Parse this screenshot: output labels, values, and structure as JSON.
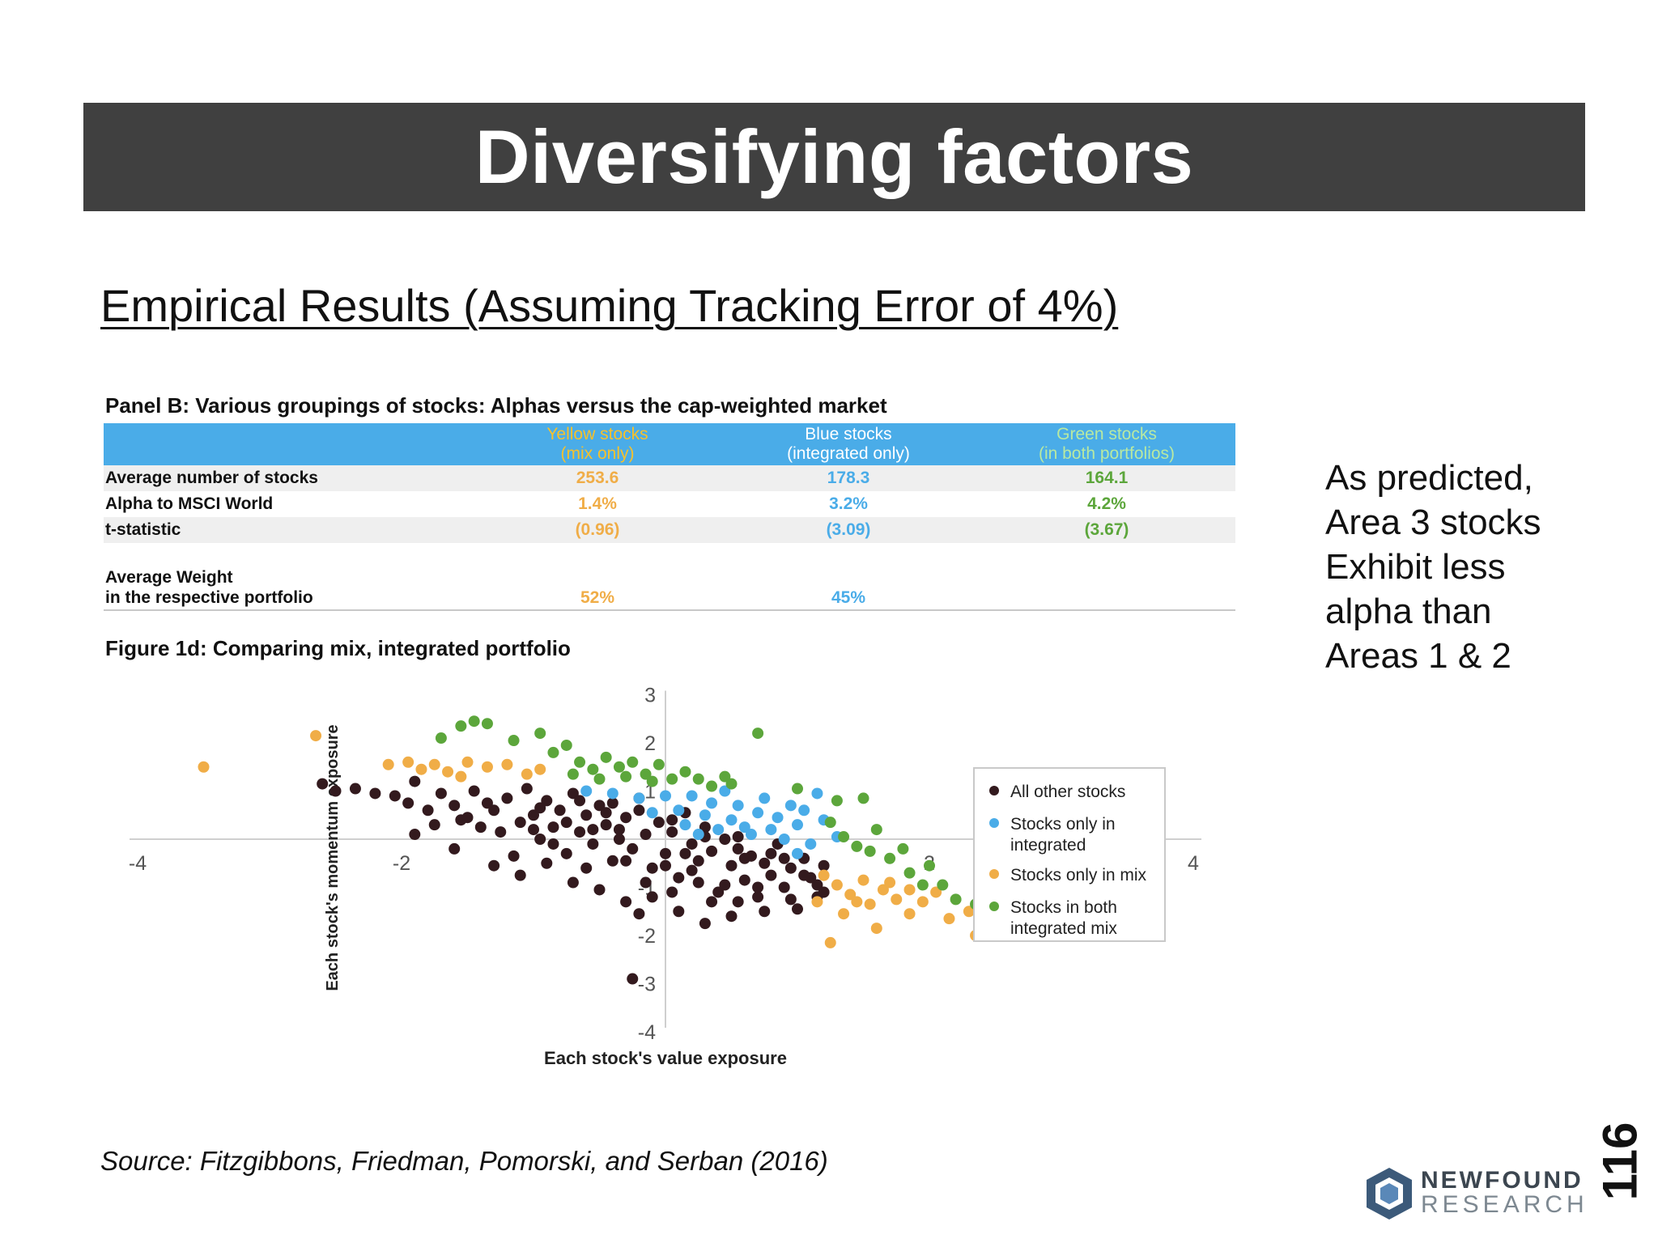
{
  "title": "Diversifying factors",
  "subtitle": "Empirical Results (Assuming Tracking Error of 4%)",
  "panel": {
    "title": "Panel B: Various groupings of stocks: Alphas versus the cap-weighted market",
    "columns": [
      {
        "line1": "Yellow stocks",
        "line2": "(mix only)"
      },
      {
        "line1": "Blue stocks",
        "line2": "(integrated only)"
      },
      {
        "line1": "Green stocks",
        "line2": "(in both portfolios)"
      }
    ],
    "rows": [
      {
        "label": "Average number of stocks",
        "values": [
          "253.6",
          "178.3",
          "164.1"
        ]
      },
      {
        "label": "Alpha to MSCI World",
        "values": [
          "1.4%",
          "3.2%",
          "4.2%"
        ]
      },
      {
        "label": "t-statistic",
        "values": [
          "(0.96)",
          "(3.09)",
          "(3.67)"
        ]
      }
    ],
    "weight_row": {
      "label_line1": "Average Weight",
      "label_line2": "in the respective portfolio",
      "values": [
        "52%",
        "45%",
        ""
      ]
    }
  },
  "figure": {
    "title": "Figure 1d: Comparing mix, integrated portfolio"
  },
  "chart_data": {
    "type": "scatter",
    "title": "",
    "xlabel": "Each stock's value exposure",
    "ylabel": "Each stock's momentum exposure",
    "x_ticks": [
      -4,
      -2,
      2,
      4
    ],
    "y_ticks": [
      3,
      2,
      1,
      -1,
      -2,
      -3,
      -4
    ],
    "x_tick_labels": [
      "-4",
      "-2",
      "2",
      "4"
    ],
    "y_tick_labels": [
      "3",
      "2",
      "1",
      "-1",
      "-2",
      "-3",
      "-4"
    ],
    "xlim": [
      -4,
      4
    ],
    "ylim": [
      -4,
      3
    ],
    "grid": false,
    "legend_position": "right",
    "colors": {
      "other": "#331a1e",
      "integrated": "#4aace8",
      "mix": "#f0ad47",
      "both": "#5ca63b"
    },
    "series": [
      {
        "name_line1": "All other stocks",
        "name_line2": "",
        "key": "other",
        "points": [
          [
            -2.6,
            1.15
          ],
          [
            -2.5,
            1.0
          ],
          [
            -2.35,
            1.05
          ],
          [
            -2.2,
            0.95
          ],
          [
            -2.05,
            0.9
          ],
          [
            -1.95,
            0.75
          ],
          [
            -1.9,
            1.2
          ],
          [
            -1.8,
            0.6
          ],
          [
            -1.7,
            0.95
          ],
          [
            -1.6,
            0.7
          ],
          [
            -1.55,
            0.4
          ],
          [
            -1.45,
            1.0
          ],
          [
            -1.4,
            0.25
          ],
          [
            -1.3,
            0.6
          ],
          [
            -1.2,
            0.85
          ],
          [
            -1.1,
            0.35
          ],
          [
            -1.05,
            1.05
          ],
          [
            -1.0,
            0.5
          ],
          [
            -0.95,
            0.0
          ],
          [
            -0.9,
            0.8
          ],
          [
            -0.85,
            0.25
          ],
          [
            -0.8,
            0.6
          ],
          [
            -0.75,
            -0.3
          ],
          [
            -0.7,
            0.95
          ],
          [
            -0.65,
            0.15
          ],
          [
            -0.6,
            0.5
          ],
          [
            -0.55,
            -0.1
          ],
          [
            -0.5,
            0.7
          ],
          [
            -0.45,
            0.3
          ],
          [
            -0.4,
            -0.45
          ],
          [
            -0.35,
            0.0
          ],
          [
            -0.3,
            0.45
          ],
          [
            -0.25,
            -0.2
          ],
          [
            -0.2,
            0.85
          ],
          [
            -0.15,
            0.1
          ],
          [
            -0.1,
            -0.6
          ],
          [
            -0.05,
            0.35
          ],
          [
            0.0,
            -0.3
          ],
          [
            0.05,
            0.15
          ],
          [
            0.1,
            -0.8
          ],
          [
            0.15,
            0.55
          ],
          [
            0.2,
            -0.1
          ],
          [
            0.25,
            -0.45
          ],
          [
            0.3,
            0.25
          ],
          [
            0.35,
            -0.25
          ],
          [
            0.4,
            -1.1
          ],
          [
            0.45,
            0.0
          ],
          [
            0.5,
            -0.55
          ],
          [
            0.55,
            -0.2
          ],
          [
            0.6,
            -0.85
          ],
          [
            0.65,
            -0.35
          ],
          [
            0.7,
            -1.2
          ],
          [
            0.75,
            -0.5
          ],
          [
            0.8,
            -0.75
          ],
          [
            0.85,
            -0.1
          ],
          [
            0.9,
            -1.0
          ],
          [
            0.95,
            -0.6
          ],
          [
            1.0,
            -1.45
          ],
          [
            1.05,
            -0.4
          ],
          [
            1.1,
            -0.8
          ],
          [
            1.15,
            -1.2
          ],
          [
            1.2,
            -0.55
          ],
          [
            -1.9,
            0.1
          ],
          [
            -1.6,
            -0.2
          ],
          [
            -1.3,
            -0.55
          ],
          [
            -1.1,
            -0.75
          ],
          [
            -0.9,
            -0.5
          ],
          [
            -0.7,
            -0.9
          ],
          [
            -0.5,
            -1.05
          ],
          [
            -0.3,
            -1.3
          ],
          [
            -0.1,
            -1.2
          ],
          [
            0.1,
            -1.5
          ],
          [
            0.3,
            -1.75
          ],
          [
            0.5,
            -1.6
          ],
          [
            -0.95,
            0.65
          ],
          [
            -0.65,
            0.8
          ],
          [
            -0.45,
            0.55
          ],
          [
            -0.2,
            0.6
          ],
          [
            0.05,
            0.4
          ],
          [
            0.3,
            0.05
          ],
          [
            0.55,
            0.05
          ],
          [
            0.8,
            -0.3
          ],
          [
            1.05,
            -0.75
          ],
          [
            1.15,
            -0.95
          ],
          [
            -1.25,
            0.15
          ],
          [
            -0.85,
            -0.1
          ],
          [
            -0.55,
            0.2
          ],
          [
            -0.3,
            -0.45
          ],
          [
            0.0,
            -0.55
          ],
          [
            0.2,
            -0.65
          ],
          [
            0.45,
            -0.95
          ],
          [
            0.7,
            -1.0
          ],
          [
            0.95,
            -1.25
          ],
          [
            -0.25,
            -2.9
          ],
          [
            -1.35,
            0.75
          ],
          [
            -1.5,
            0.45
          ],
          [
            -0.75,
            0.35
          ],
          [
            -0.4,
            0.75
          ],
          [
            0.15,
            -0.3
          ],
          [
            0.6,
            -0.4
          ],
          [
            0.9,
            -0.4
          ],
          [
            -0.6,
            -0.6
          ],
          [
            -0.15,
            -0.9
          ],
          [
            0.35,
            -1.3
          ],
          [
            0.75,
            -1.5
          ],
          [
            1.2,
            -1.1
          ],
          [
            -1.75,
            0.3
          ],
          [
            -1.0,
            0.2
          ],
          [
            -0.35,
            0.2
          ],
          [
            0.25,
            -0.9
          ],
          [
            0.55,
            -1.3
          ],
          [
            -1.15,
            -0.35
          ],
          [
            -0.2,
            -1.55
          ],
          [
            0.05,
            -1.1
          ]
        ]
      },
      {
        "name_line1": "Stocks only in",
        "name_line2": "integrated",
        "key": "integrated",
        "points": [
          [
            -0.6,
            1.0
          ],
          [
            -0.4,
            0.95
          ],
          [
            -0.2,
            0.85
          ],
          [
            0.0,
            0.9
          ],
          [
            0.1,
            0.6
          ],
          [
            0.2,
            0.9
          ],
          [
            0.3,
            0.5
          ],
          [
            0.35,
            0.75
          ],
          [
            0.45,
            1.0
          ],
          [
            0.5,
            0.4
          ],
          [
            0.55,
            0.7
          ],
          [
            0.6,
            0.25
          ],
          [
            0.7,
            0.55
          ],
          [
            0.75,
            0.85
          ],
          [
            0.8,
            0.2
          ],
          [
            0.85,
            0.45
          ],
          [
            0.9,
            0.0
          ],
          [
            1.0,
            0.3
          ],
          [
            1.05,
            0.6
          ],
          [
            1.1,
            -0.1
          ],
          [
            1.2,
            0.4
          ],
          [
            1.3,
            0.05
          ],
          [
            0.15,
            0.3
          ],
          [
            0.4,
            0.2
          ],
          [
            0.65,
            0.1
          ],
          [
            0.95,
            0.7
          ],
          [
            1.15,
            0.95
          ],
          [
            -0.1,
            0.55
          ],
          [
            0.25,
            0.1
          ],
          [
            1.0,
            -0.3
          ]
        ]
      },
      {
        "name_line1": "Stocks only in mix",
        "name_line2": "",
        "key": "mix",
        "points": [
          [
            -3.5,
            1.5
          ],
          [
            -2.65,
            2.15
          ],
          [
            -2.1,
            1.55
          ],
          [
            -1.95,
            1.6
          ],
          [
            -1.85,
            1.45
          ],
          [
            -1.75,
            1.55
          ],
          [
            -1.65,
            1.4
          ],
          [
            -1.5,
            1.6
          ],
          [
            -1.35,
            1.5
          ],
          [
            -1.2,
            1.55
          ],
          [
            -1.05,
            1.35
          ],
          [
            -0.95,
            1.45
          ],
          [
            -1.55,
            1.3
          ],
          [
            1.2,
            -0.75
          ],
          [
            1.3,
            -0.95
          ],
          [
            1.4,
            -1.15
          ],
          [
            1.5,
            -0.85
          ],
          [
            1.55,
            -1.35
          ],
          [
            1.65,
            -1.05
          ],
          [
            1.75,
            -1.25
          ],
          [
            1.85,
            -1.55
          ],
          [
            1.95,
            -1.3
          ],
          [
            2.05,
            -1.1
          ],
          [
            2.15,
            -1.65
          ],
          [
            2.3,
            -1.5
          ],
          [
            2.45,
            -1.7
          ],
          [
            1.35,
            -1.55
          ],
          [
            1.6,
            -1.85
          ],
          [
            1.25,
            -2.15
          ],
          [
            1.45,
            -1.3
          ],
          [
            1.7,
            -0.9
          ],
          [
            1.85,
            -1.05
          ],
          [
            2.35,
            -2.0
          ],
          [
            1.15,
            -1.3
          ]
        ]
      },
      {
        "name_line1": "Stocks in both",
        "name_line2": "integrated mix",
        "key": "both",
        "points": [
          [
            -1.55,
            2.35
          ],
          [
            -1.45,
            2.45
          ],
          [
            -1.35,
            2.4
          ],
          [
            -1.7,
            2.1
          ],
          [
            -1.15,
            2.05
          ],
          [
            -0.95,
            2.2
          ],
          [
            -0.85,
            1.8
          ],
          [
            -0.75,
            1.95
          ],
          [
            -0.65,
            1.6
          ],
          [
            -0.55,
            1.45
          ],
          [
            -0.45,
            1.7
          ],
          [
            -0.35,
            1.5
          ],
          [
            -0.25,
            1.6
          ],
          [
            -0.15,
            1.35
          ],
          [
            -0.05,
            1.55
          ],
          [
            0.05,
            1.25
          ],
          [
            0.15,
            1.4
          ],
          [
            -0.7,
            1.35
          ],
          [
            -0.5,
            1.25
          ],
          [
            -0.3,
            1.3
          ],
          [
            -0.1,
            1.2
          ],
          [
            0.35,
            1.1
          ],
          [
            0.5,
            1.15
          ],
          [
            0.7,
            2.2
          ],
          [
            1.0,
            1.05
          ],
          [
            1.3,
            0.8
          ],
          [
            1.5,
            0.85
          ],
          [
            1.25,
            0.35
          ],
          [
            1.35,
            0.05
          ],
          [
            1.45,
            -0.15
          ],
          [
            1.55,
            -0.25
          ],
          [
            1.7,
            -0.4
          ],
          [
            1.85,
            -0.7
          ],
          [
            2.0,
            -0.55
          ],
          [
            2.1,
            -0.95
          ],
          [
            2.2,
            -1.25
          ],
          [
            2.35,
            -1.35
          ],
          [
            2.55,
            -1.15
          ],
          [
            2.75,
            -1.45
          ],
          [
            2.8,
            -1.65
          ],
          [
            3.15,
            -1.5
          ],
          [
            1.8,
            -0.2
          ],
          [
            1.6,
            0.2
          ],
          [
            2.4,
            -1.0
          ],
          [
            1.95,
            -0.95
          ],
          [
            0.25,
            1.25
          ],
          [
            0.45,
            1.3
          ]
        ]
      }
    ]
  },
  "side_note_lines": [
    "As predicted,",
    "Area 3 stocks",
    "Exhibit less",
    "alpha than",
    "Areas 1 & 2"
  ],
  "source": "Source: Fitzgibbons, Friedman, Pomorski, and Serban (2016)",
  "logo": {
    "line1": "NEWFOUND",
    "line2": "RESEARCH",
    "colors": {
      "hex_dark": "#3c5a7a",
      "hex_light": "#5a88b8"
    }
  },
  "page_number": "116"
}
